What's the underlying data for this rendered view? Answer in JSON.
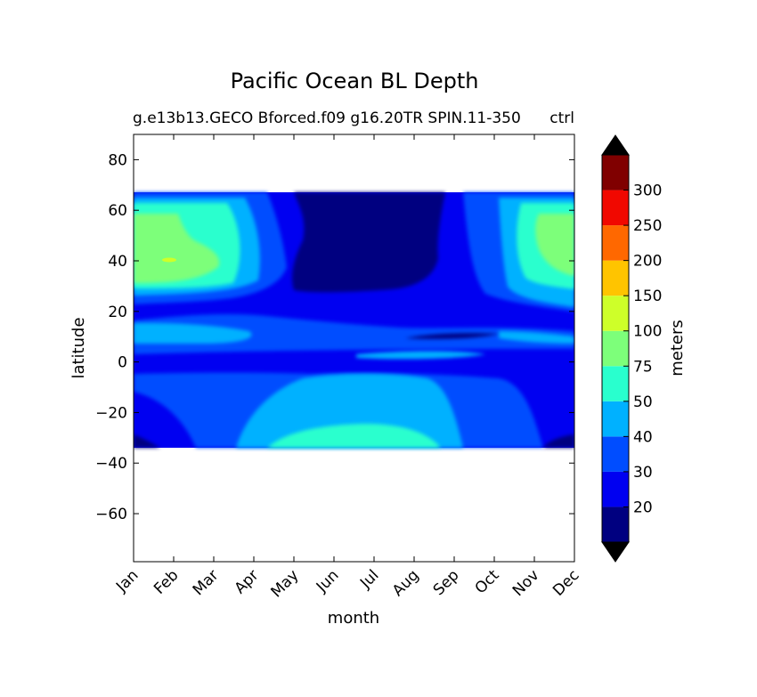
{
  "chart_data": {
    "type": "heatmap",
    "title": "Pacific Ocean BL Depth",
    "subtitle_left": "g.e13b13.GECO Bforced.f09 g16.20TR SPIN.11-350",
    "subtitle_right": "ctrl",
    "xlabel": "month",
    "ylabel": "latitude",
    "x_ticks": [
      "Jan",
      "Feb",
      "Mar",
      "Apr",
      "May",
      "Jun",
      "Jul",
      "Aug",
      "Sep",
      "Oct",
      "Nov",
      "Dec"
    ],
    "y_ticks": [
      80,
      60,
      40,
      20,
      0,
      -20,
      -40,
      -60
    ],
    "ylim": [
      -79,
      90
    ],
    "data_lat_range": [
      -34,
      67
    ],
    "colorbar": {
      "label": "meters",
      "levels": [
        20,
        30,
        40,
        50,
        75,
        100,
        150,
        200,
        250,
        300
      ],
      "tick_labels": [
        "20",
        "30",
        "40",
        "50",
        "75",
        "100",
        "150",
        "200",
        "250",
        "300"
      ],
      "extend": "both",
      "colors": [
        "#000080",
        "#0000f1",
        "#004dff",
        "#00b1ff",
        "#29ffce",
        "#7dff7a",
        "#ceff29",
        "#ffc400",
        "#ff6800",
        "#f10800",
        "#800000"
      ],
      "over_color": "#000000",
      "under_color": "#000000"
    },
    "grid": false
  }
}
